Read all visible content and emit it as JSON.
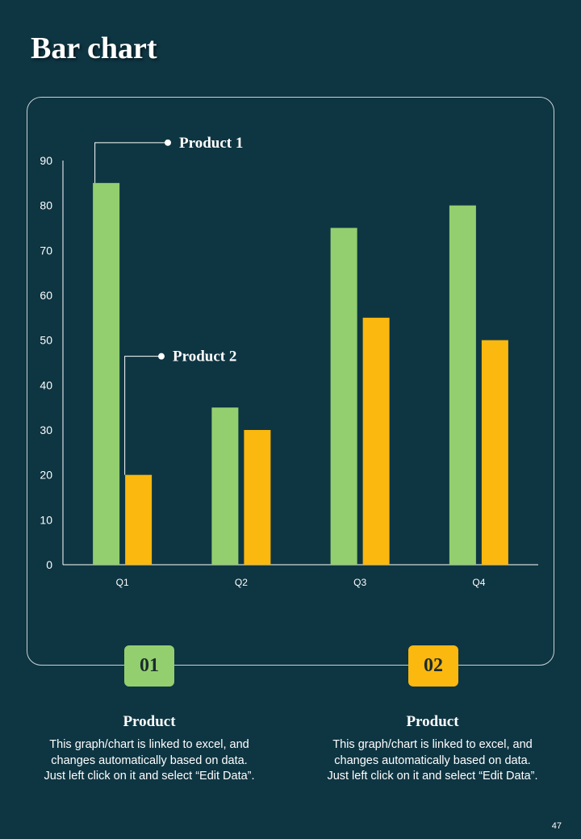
{
  "page": {
    "title": "Bar chart",
    "page_number": "47"
  },
  "colors": {
    "background": "#0e3542",
    "product1": "#93cf6f",
    "product2": "#fbb80e"
  },
  "chart_data": {
    "type": "bar",
    "categories": [
      "Q1",
      "Q2",
      "Q3",
      "Q4"
    ],
    "series": [
      {
        "name": "Product 1",
        "values": [
          85,
          35,
          75,
          80
        ],
        "color": "#93cf6f"
      },
      {
        "name": "Product 2",
        "values": [
          20,
          30,
          55,
          50
        ],
        "color": "#fbb80e"
      }
    ],
    "ylim": [
      0,
      90
    ],
    "yticks": [
      0,
      10,
      20,
      30,
      40,
      50,
      60,
      70,
      80,
      90
    ],
    "title": "",
    "xlabel": "",
    "ylabel": "",
    "grid": false,
    "legend": "callout labels"
  },
  "cards": [
    {
      "badge": "01",
      "title": "Product",
      "text": "This graph/chart is linked to excel, and changes automatically based on data. Just left click on it and select “Edit Data”."
    },
    {
      "badge": "02",
      "title": "Product",
      "text": "This graph/chart is linked to excel, and changes automatically based on data. Just left click on it and select “Edit Data”."
    }
  ]
}
